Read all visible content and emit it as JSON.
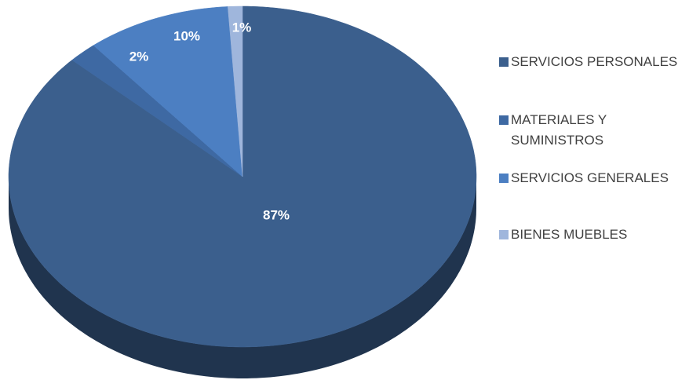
{
  "chart_data": {
    "type": "pie",
    "categories": [
      "SERVICIOS PERSONALES",
      "MATERIALES Y SUMINISTROS",
      "SERVICIOS GENERALES",
      "BIENES MUEBLES"
    ],
    "values": [
      87,
      2,
      10,
      1
    ],
    "value_labels": [
      "87%",
      "2%",
      "10%",
      "1%"
    ],
    "colors": [
      "#3b5f8d",
      "#3e69a3",
      "#4c7fc2",
      "#9fb6dc"
    ],
    "legend": "right"
  }
}
